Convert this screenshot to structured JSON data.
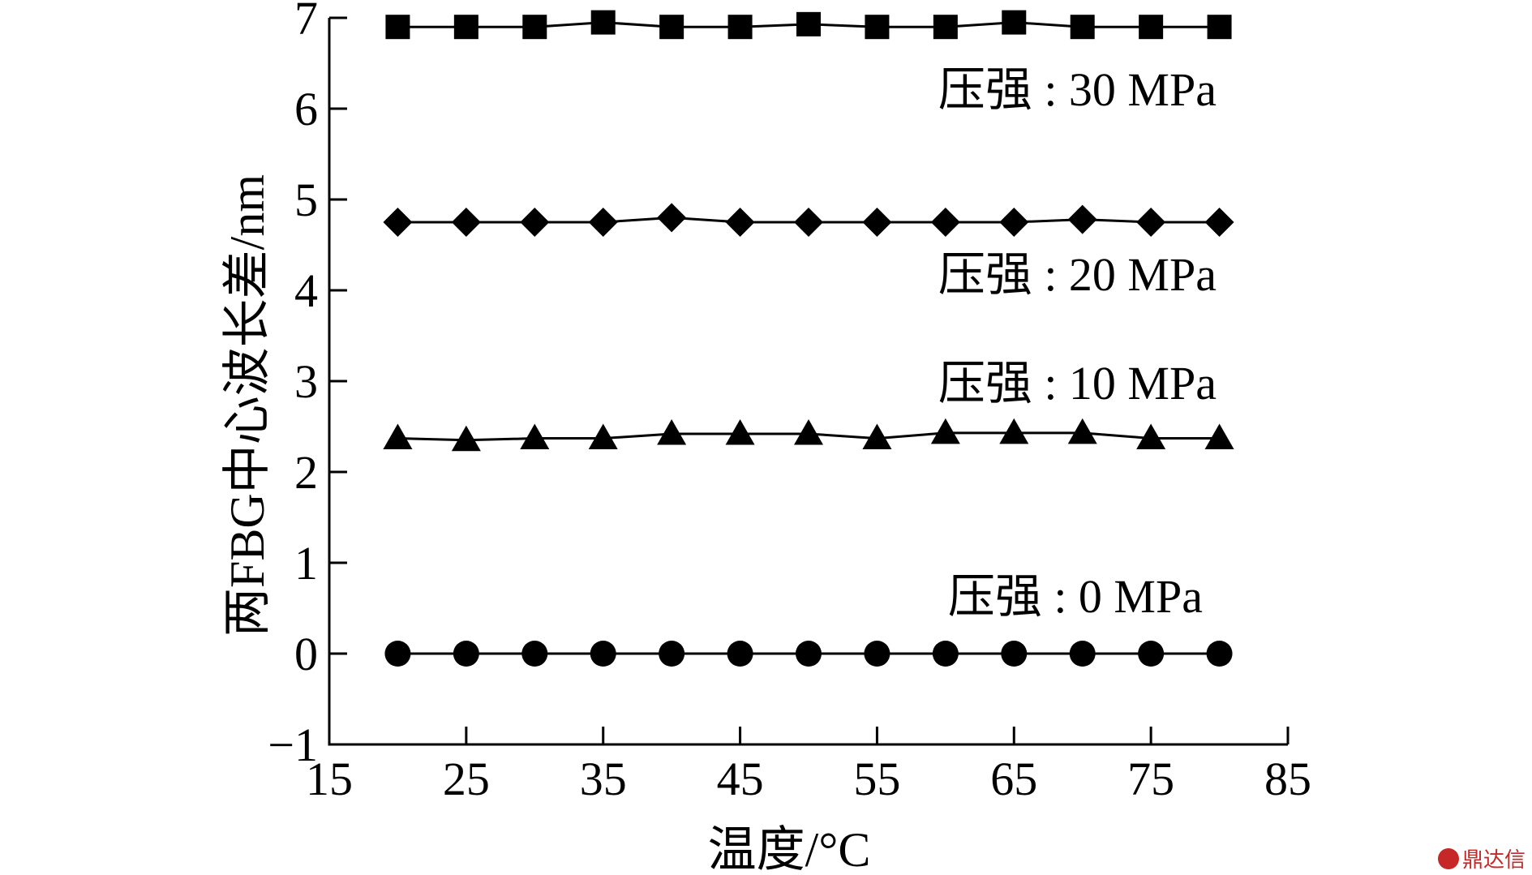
{
  "chart_data": {
    "type": "line",
    "xlabel": "温度/°C",
    "ylabel": "两FBG中心波长差/nm",
    "xlim": [
      15,
      85
    ],
    "ylim": [
      -1,
      7
    ],
    "xticks": [
      15,
      25,
      35,
      45,
      55,
      65,
      75,
      85
    ],
    "yticks": [
      -1,
      0,
      1,
      2,
      3,
      4,
      5,
      6,
      7
    ],
    "x": [
      20,
      25,
      30,
      35,
      40,
      45,
      50,
      55,
      60,
      65,
      70,
      75,
      80
    ],
    "series": [
      {
        "marker": "square",
        "values": [
          6.9,
          6.9,
          6.9,
          6.95,
          6.9,
          6.9,
          6.93,
          6.9,
          6.9,
          6.95,
          6.9,
          6.9,
          6.9
        ]
      },
      {
        "marker": "diamond",
        "values": [
          4.75,
          4.75,
          4.75,
          4.75,
          4.8,
          4.75,
          4.75,
          4.75,
          4.75,
          4.75,
          4.78,
          4.75,
          4.75
        ]
      },
      {
        "marker": "triangle",
        "values": [
          2.37,
          2.35,
          2.37,
          2.37,
          2.42,
          2.42,
          2.42,
          2.37,
          2.43,
          2.43,
          2.43,
          2.37,
          2.37
        ]
      },
      {
        "marker": "circle",
        "values": [
          0,
          0,
          0,
          0,
          0,
          0,
          0,
          0,
          0,
          0,
          0,
          0,
          0
        ]
      }
    ],
    "annotations": [
      "压强 : 30 MPa",
      "压强 : 20 MPa",
      "压强 : 10 MPa",
      "压强 : 0 MPa"
    ],
    "grid": false,
    "legend": "none"
  },
  "watermark": "鼎达信"
}
